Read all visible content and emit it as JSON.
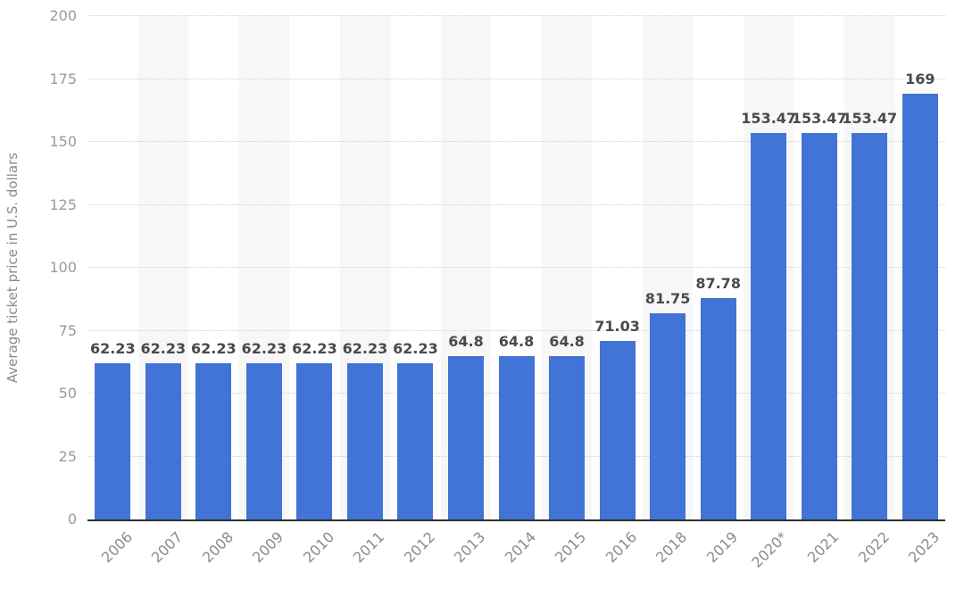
{
  "chart_data": {
    "type": "bar",
    "title": "",
    "xlabel": "",
    "ylabel": "Average ticket price in U.S. dollars",
    "categories": [
      "2006",
      "2007",
      "2008",
      "2009",
      "2010",
      "2011",
      "2012",
      "2013",
      "2014",
      "2015",
      "2016",
      "2018",
      "2019",
      "2020*",
      "2021",
      "2022",
      "2023"
    ],
    "values": [
      62.23,
      62.23,
      62.23,
      62.23,
      62.23,
      62.23,
      62.23,
      64.8,
      64.8,
      64.8,
      71.03,
      81.75,
      87.78,
      153.47,
      153.47,
      153.47,
      169
    ],
    "value_labels": [
      "62.23",
      "62.23",
      "62.23",
      "62.23",
      "62.23",
      "62.23",
      "62.23",
      "64.8",
      "64.8",
      "64.8",
      "71.03",
      "81.75",
      "87.78",
      "153.47",
      "153.47",
      "153.47",
      "169"
    ],
    "ylim": [
      0,
      200
    ],
    "yticks": [
      0,
      25,
      50,
      75,
      100,
      125,
      150,
      175,
      200
    ],
    "grid": "horizontal-dotted",
    "legend": "none",
    "column_stripes": "alternating-even-columns",
    "xlabel_rotation": -45,
    "colors": {
      "bar": "#4273d6",
      "value_label": "#4a4a4a",
      "tick_label": "#9a9a9a",
      "axis_label": "#8a8a8a",
      "axis_line": "#2f2f2f",
      "gridline": "#cfcfcf",
      "column_stripe": "#f7f7f7",
      "background": "#ffffff"
    }
  }
}
